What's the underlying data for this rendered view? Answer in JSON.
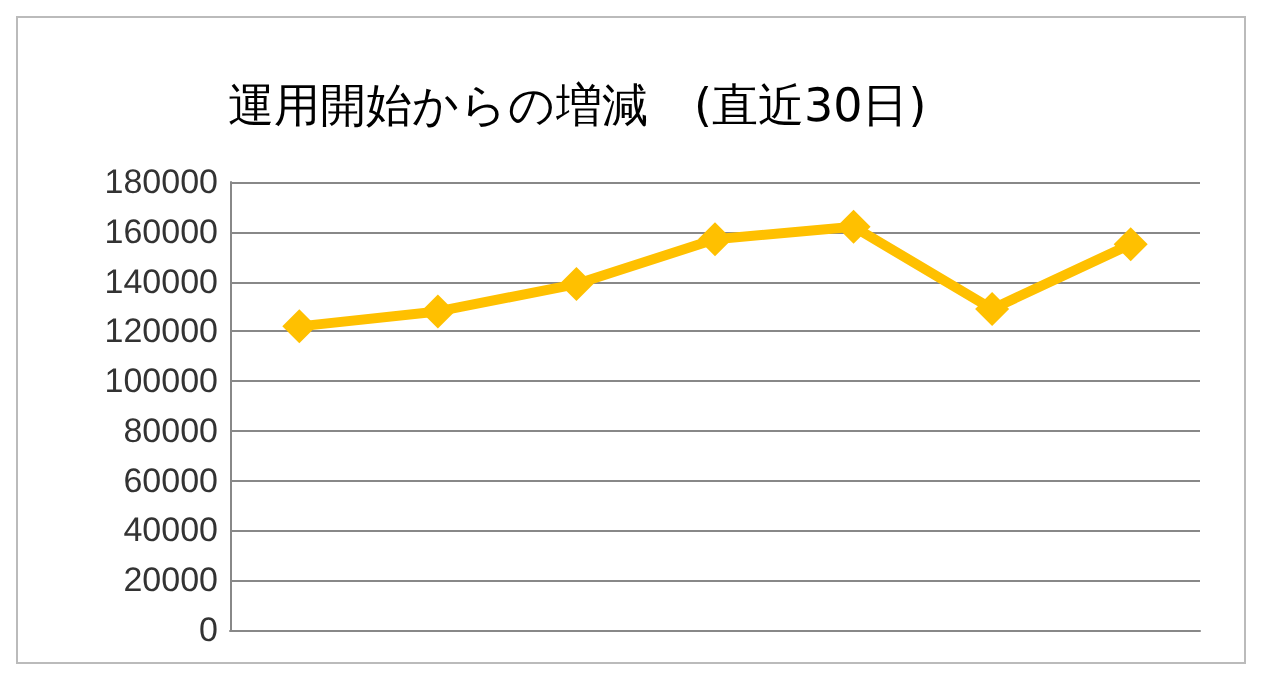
{
  "chart_data": {
    "type": "line",
    "title": "運用開始からの増減　(直近30日)",
    "categories": [
      null,
      null,
      null,
      null,
      null,
      null,
      null
    ],
    "series": [
      {
        "color": "#ffc000",
        "values": [
          122000,
          128000,
          139000,
          157000,
          162000,
          129000,
          155000
        ]
      }
    ],
    "ylim": [
      0,
      180000
    ],
    "yticks": [
      0,
      20000,
      40000,
      60000,
      80000,
      100000,
      120000,
      140000,
      160000,
      180000
    ],
    "grid": "y",
    "marker": "diamond",
    "line_style": "solid",
    "tick_labels": "y"
  }
}
